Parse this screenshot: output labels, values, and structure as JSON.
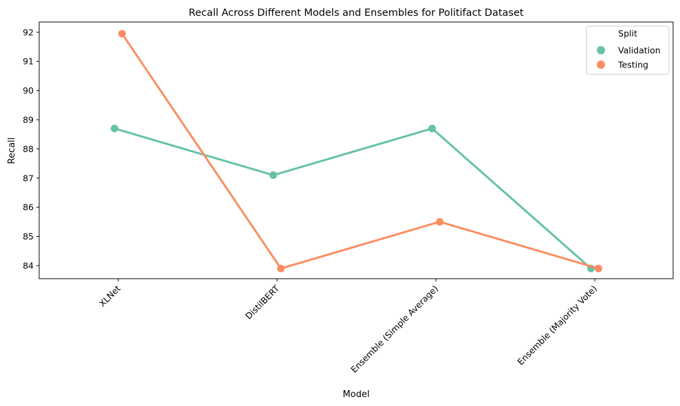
{
  "chart_data": {
    "type": "line",
    "title": "Recall Across Different Models and Ensembles for Politifact Dataset",
    "xlabel": "Model",
    "ylabel": "Recall",
    "categories": [
      "XLNet",
      "DistilBERT",
      "Ensemble (Simple Average)",
      "Ensemble (Majority Vote)"
    ],
    "yticks": [
      "84",
      "85",
      "86",
      "87",
      "88",
      "89",
      "90",
      "91",
      "92"
    ],
    "ylim": [
      83.55,
      92.35
    ],
    "series": [
      {
        "name": "Validation",
        "color": "#66c2a5",
        "values": [
          88.7,
          87.1,
          88.7,
          83.9
        ]
      },
      {
        "name": "Testing",
        "color": "#fc8d62",
        "values": [
          91.95,
          83.9,
          85.5,
          83.9
        ]
      }
    ],
    "legend": {
      "title": "Split",
      "placement": "top-right"
    },
    "grid": false
  }
}
